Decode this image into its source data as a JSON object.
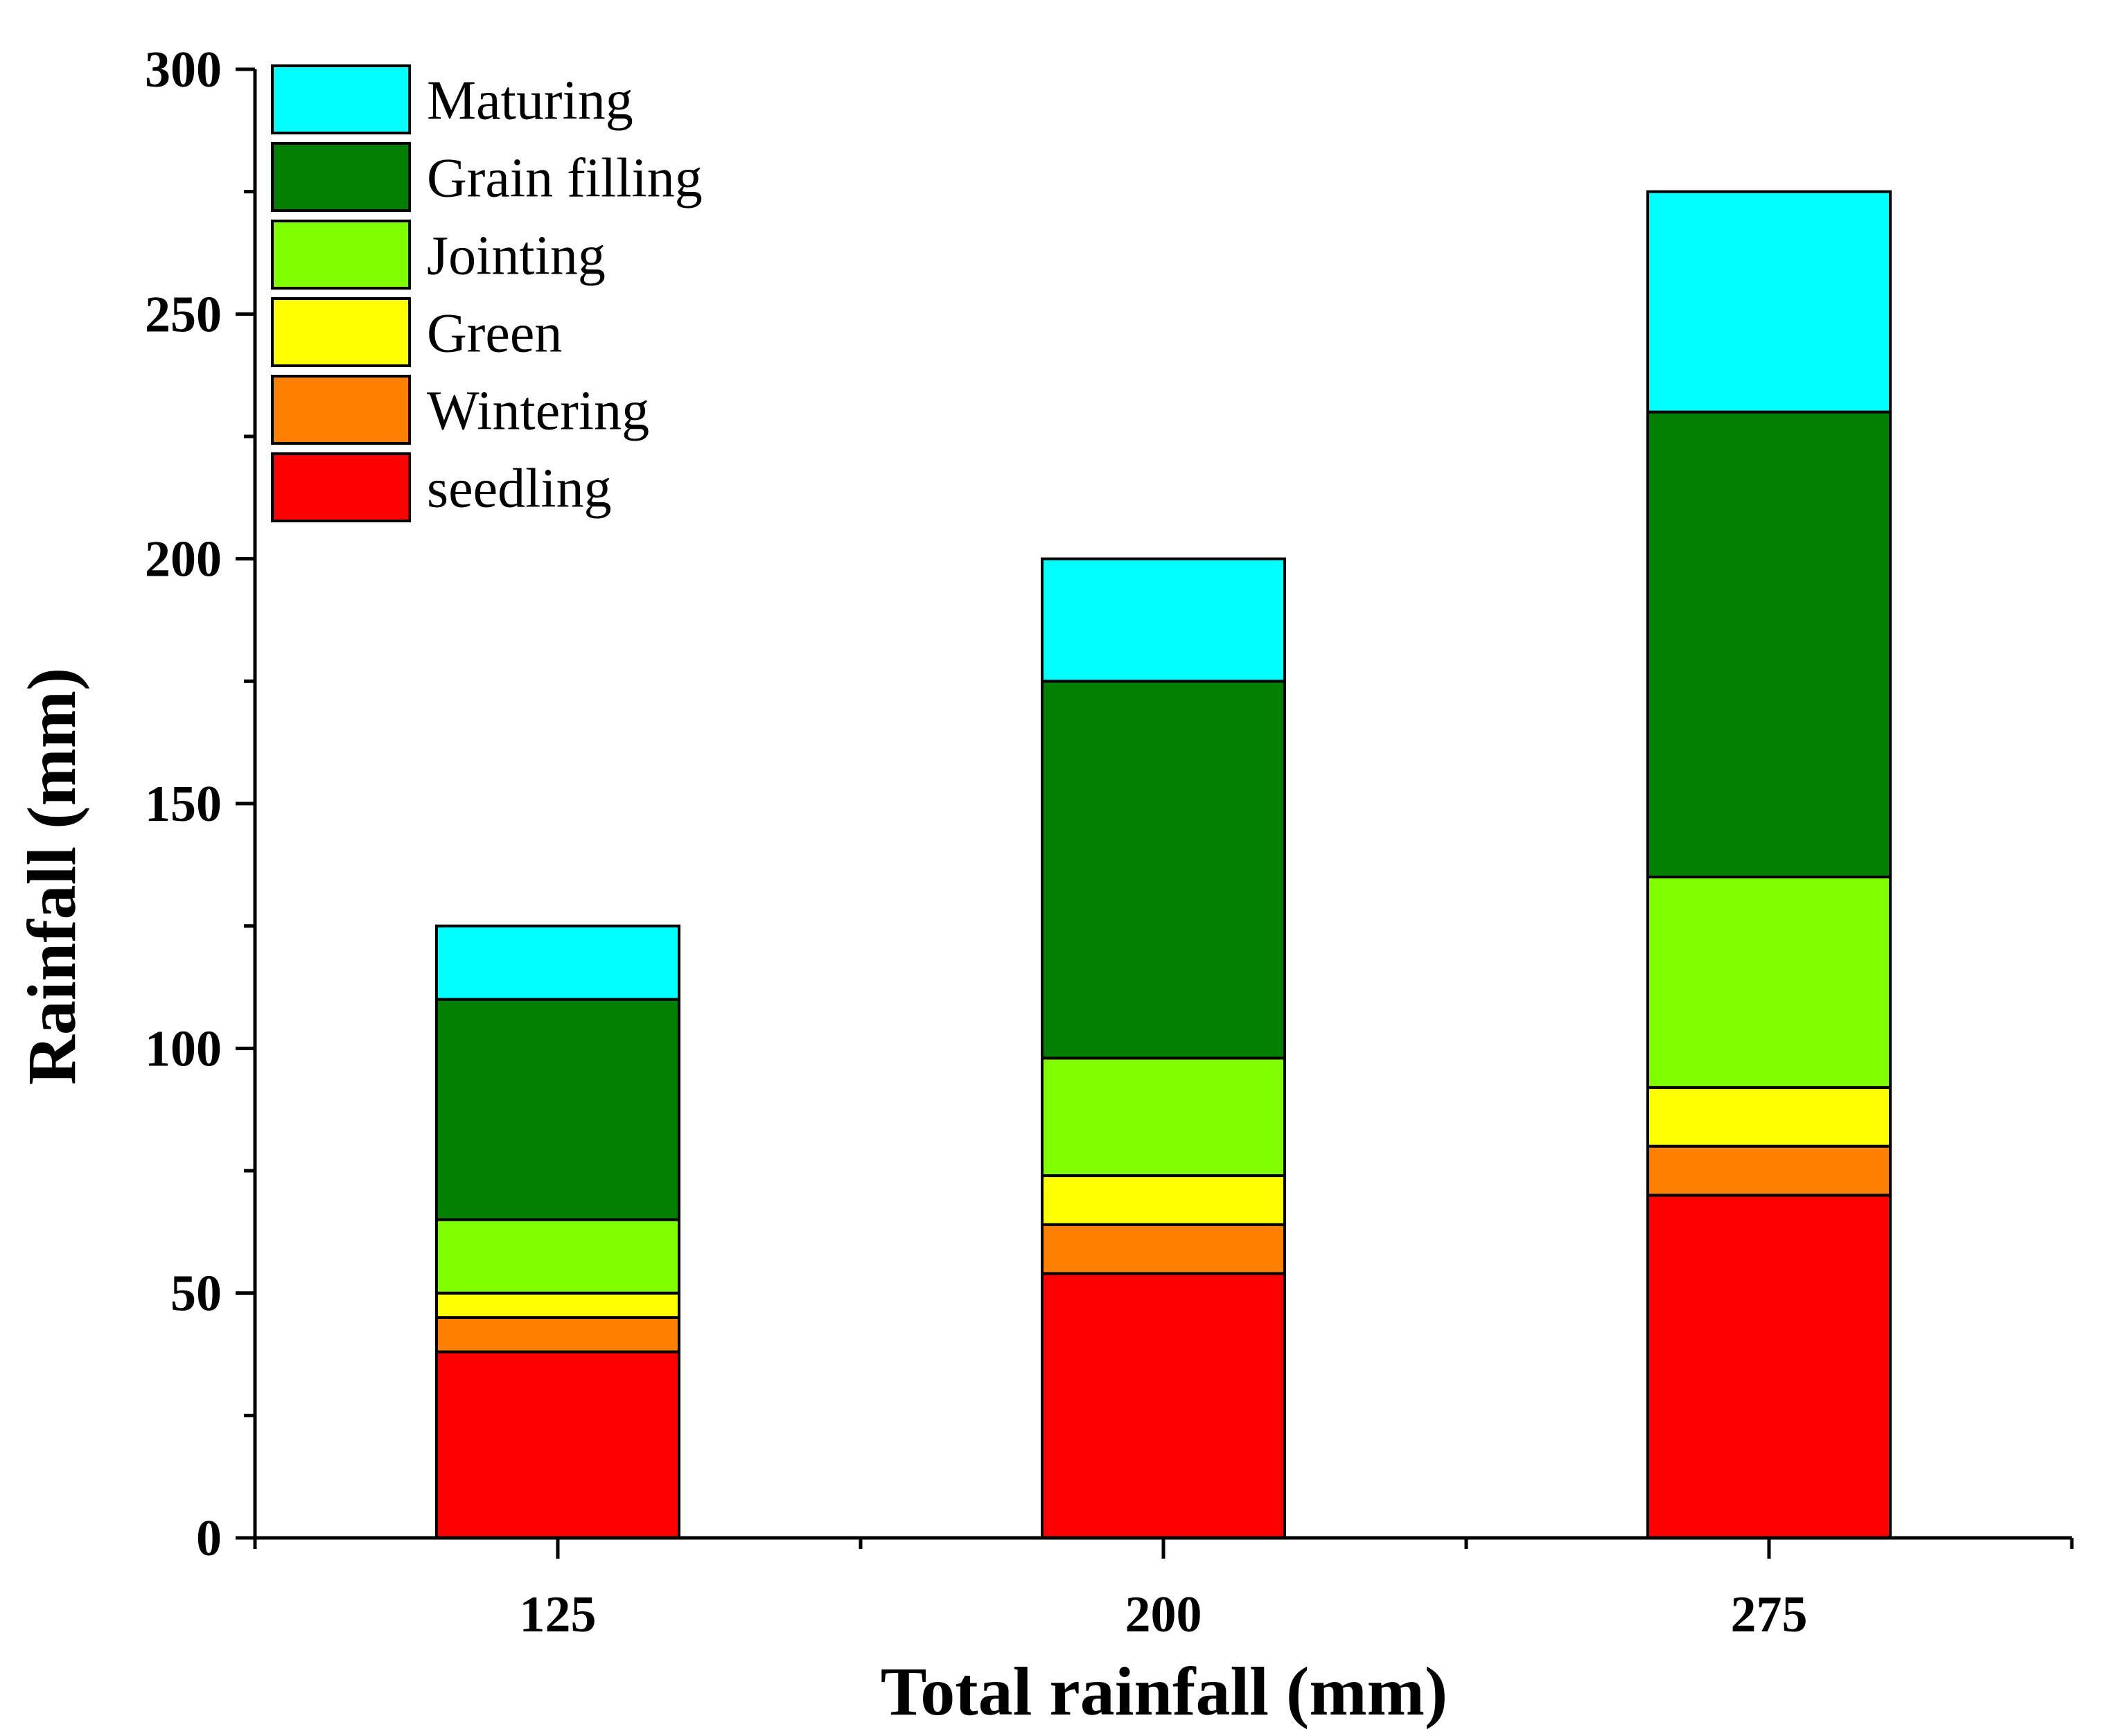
{
  "chart_data": {
    "type": "bar",
    "stacked": true,
    "title": "",
    "xlabel": "Total rainfall (mm)",
    "ylabel": "Rainfall (mm)",
    "ylim": [
      0,
      300
    ],
    "yticks": [
      0,
      50,
      100,
      150,
      200,
      250,
      300
    ],
    "categories": [
      "125",
      "200",
      "275"
    ],
    "series": [
      {
        "name": "seedling",
        "color": "#ff0000",
        "values": [
          38,
          54,
          70
        ]
      },
      {
        "name": "Wintering",
        "color": "#ff8000",
        "values": [
          7,
          10,
          10
        ]
      },
      {
        "name": "Green",
        "color": "#ffff00",
        "values": [
          5,
          10,
          12
        ]
      },
      {
        "name": "Jointing",
        "color": "#80ff00",
        "values": [
          15,
          24,
          43
        ]
      },
      {
        "name": "Grain filling",
        "color": "#007f00",
        "values": [
          45,
          77,
          95
        ]
      },
      {
        "name": "Maturing",
        "color": "#00ffff",
        "values": [
          15,
          25,
          45
        ]
      }
    ],
    "legend_order": [
      "Maturing",
      "Grain filling",
      "Jointing",
      "Green",
      "Wintering",
      "seedling"
    ],
    "legend_position": "top-left"
  }
}
